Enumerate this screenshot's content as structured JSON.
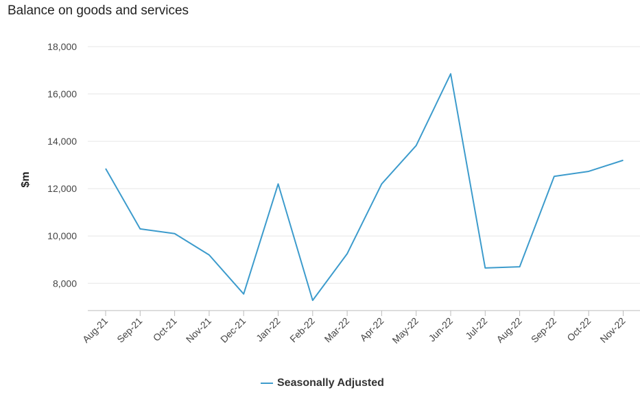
{
  "chart_data": {
    "type": "line",
    "title": "Balance on goods and services",
    "ylabel": "$m",
    "xlabel": "",
    "categories": [
      "Aug-21",
      "Sep-21",
      "Oct-21",
      "Nov-21",
      "Dec-21",
      "Jan-22",
      "Feb-22",
      "Mar-22",
      "Apr-22",
      "May-22",
      "Jun-22",
      "Jul-22",
      "Aug-22",
      "Sep-22",
      "Oct-22",
      "Nov-22"
    ],
    "series": [
      {
        "name": "Seasonally Adjusted",
        "color": "#3c9bcc",
        "values": [
          12850,
          10300,
          10100,
          9200,
          7550,
          12200,
          7280,
          9250,
          12200,
          13820,
          16850,
          8650,
          8700,
          12520,
          12730,
          13200
        ]
      }
    ],
    "ylim": [
      6850,
      18000
    ],
    "yticks": [
      8000,
      10000,
      12000,
      14000,
      16000,
      18000
    ],
    "ytick_labels": [
      "8,000",
      "10,000",
      "12,000",
      "14,000",
      "16,000",
      "18,000"
    ],
    "grid": true,
    "legend_position": "bottom-center"
  }
}
